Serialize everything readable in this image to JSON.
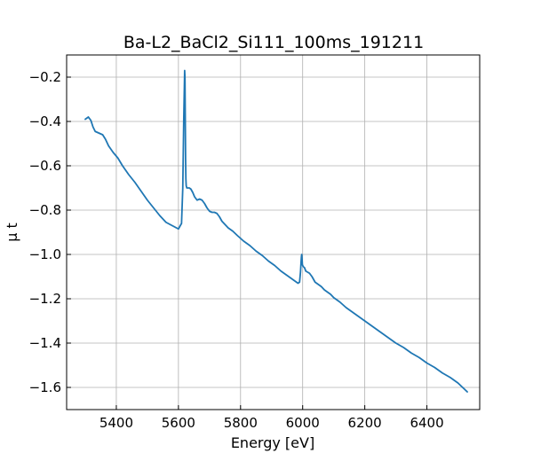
{
  "chart_data": {
    "type": "line",
    "title": "Ba-L2_BaCl2_Si111_100ms_191211",
    "xlabel": "Energy [eV]",
    "ylabel": "μ t",
    "xlim": [
      5240,
      6570
    ],
    "ylim": [
      -1.7,
      -0.1
    ],
    "xticks": [
      5400,
      5600,
      5800,
      6000,
      6200,
      6400
    ],
    "yticks": [
      -0.2,
      -0.4,
      -0.6,
      -0.8,
      -1.0,
      -1.2,
      -1.4,
      -1.6
    ],
    "xtick_labels": [
      "5400",
      "5600",
      "5800",
      "6000",
      "6200",
      "6400"
    ],
    "ytick_labels": [
      "−0.2",
      "−0.4",
      "−0.6",
      "−0.8",
      "−1.0",
      "−1.2",
      "−1.4",
      "−1.6"
    ],
    "grid": true,
    "line_color": "#1f77b4",
    "series": [
      {
        "x": [
          5300,
          5310,
          5318,
          5325,
          5332,
          5340,
          5348,
          5356,
          5365,
          5375,
          5390,
          5405,
          5420,
          5440,
          5460,
          5480,
          5500,
          5520,
          5540,
          5560,
          5580,
          5600,
          5610,
          5614,
          5617,
          5619,
          5620,
          5621,
          5622,
          5623,
          5624,
          5625,
          5627,
          5630,
          5635,
          5640,
          5646,
          5652,
          5660,
          5668,
          5676,
          5684,
          5692,
          5700,
          5708,
          5716,
          5724,
          5732,
          5740,
          5750,
          5760,
          5775,
          5790,
          5810,
          5830,
          5850,
          5870,
          5890,
          5910,
          5930,
          5950,
          5970,
          5985,
          5990,
          5993,
          5995,
          5996,
          5997,
          5998,
          5999,
          6000,
          6002,
          6006,
          6010,
          6016,
          6022,
          6030,
          6040,
          6050,
          6060,
          6070,
          6080,
          6090,
          6100,
          6120,
          6140,
          6160,
          6180,
          6200,
          6225,
          6250,
          6275,
          6300,
          6325,
          6350,
          6375,
          6400,
          6425,
          6450,
          6475,
          6500,
          6530
        ],
        "y": [
          -0.39,
          -0.38,
          -0.395,
          -0.425,
          -0.445,
          -0.45,
          -0.455,
          -0.46,
          -0.48,
          -0.51,
          -0.54,
          -0.565,
          -0.6,
          -0.64,
          -0.675,
          -0.715,
          -0.755,
          -0.79,
          -0.825,
          -0.855,
          -0.87,
          -0.885,
          -0.86,
          -0.7,
          -0.4,
          -0.25,
          -0.17,
          -0.2,
          -0.38,
          -0.57,
          -0.66,
          -0.69,
          -0.7,
          -0.7,
          -0.7,
          -0.705,
          -0.72,
          -0.74,
          -0.755,
          -0.75,
          -0.755,
          -0.77,
          -0.79,
          -0.805,
          -0.81,
          -0.81,
          -0.815,
          -0.83,
          -0.85,
          -0.865,
          -0.88,
          -0.895,
          -0.915,
          -0.94,
          -0.96,
          -0.985,
          -1.005,
          -1.03,
          -1.05,
          -1.075,
          -1.095,
          -1.115,
          -1.13,
          -1.125,
          -1.08,
          -1.03,
          -1.01,
          -1.0,
          -1.02,
          -1.045,
          -1.05,
          -1.055,
          -1.06,
          -1.075,
          -1.08,
          -1.085,
          -1.1,
          -1.125,
          -1.135,
          -1.145,
          -1.16,
          -1.17,
          -1.18,
          -1.195,
          -1.215,
          -1.24,
          -1.26,
          -1.28,
          -1.3,
          -1.325,
          -1.35,
          -1.375,
          -1.4,
          -1.42,
          -1.445,
          -1.465,
          -1.49,
          -1.51,
          -1.535,
          -1.555,
          -1.58,
          -1.62
        ]
      }
    ]
  }
}
